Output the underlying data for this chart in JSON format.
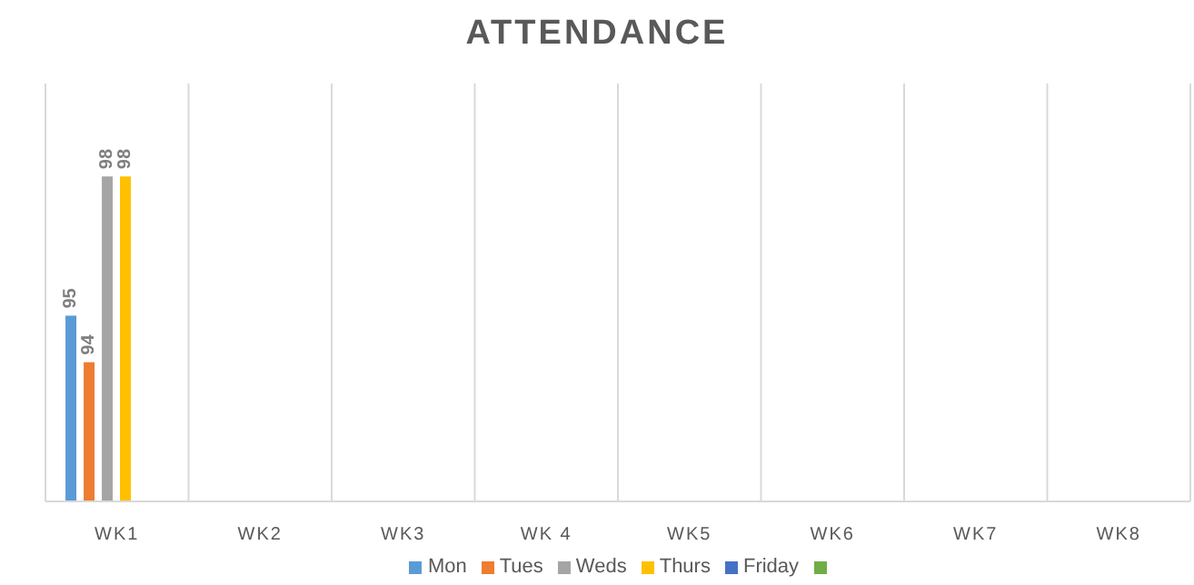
{
  "chart_data": {
    "type": "bar",
    "title": "ATTENDANCE",
    "categories": [
      "WK1",
      "WK2",
      "WK3",
      "WK 4",
      "WK5",
      "WK6",
      "WK7",
      "WK8"
    ],
    "series": [
      {
        "name": "Mon",
        "color": "#5b9bd5",
        "values": [
          95,
          null,
          null,
          null,
          null,
          null,
          null,
          null
        ]
      },
      {
        "name": "Tues",
        "color": "#ed7d31",
        "values": [
          94,
          null,
          null,
          null,
          null,
          null,
          null,
          null
        ]
      },
      {
        "name": "Weds",
        "color": "#a5a5a5",
        "values": [
          98,
          null,
          null,
          null,
          null,
          null,
          null,
          null
        ]
      },
      {
        "name": "Thurs",
        "color": "#ffc000",
        "values": [
          98,
          null,
          null,
          null,
          null,
          null,
          null,
          null
        ]
      },
      {
        "name": "Friday",
        "color": "#4472c4",
        "values": [
          null,
          null,
          null,
          null,
          null,
          null,
          null,
          null
        ]
      },
      {
        "color": "#70ad47",
        "values": [
          null,
          null,
          null,
          null,
          null,
          null,
          null,
          null
        ]
      }
    ],
    "ylim": [
      91,
      100
    ],
    "tick_labels": "x",
    "data_labels": true,
    "grid": "x",
    "legend": "bottom"
  }
}
